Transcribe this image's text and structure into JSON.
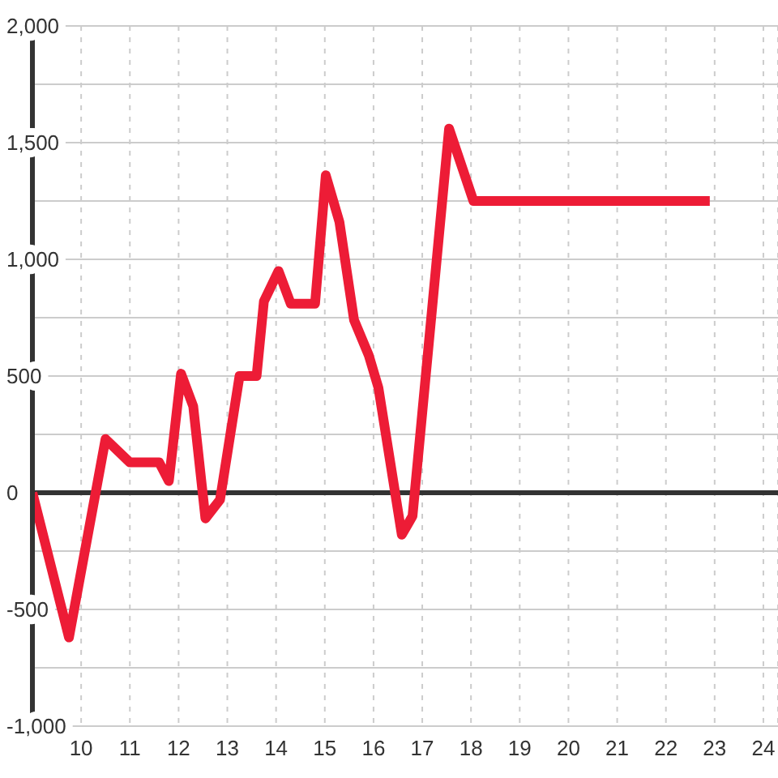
{
  "chart_data": {
    "type": "line",
    "x": [
      9,
      9.75,
      10.5,
      11,
      11.6,
      11.8,
      12.05,
      12.3,
      12.55,
      12.85,
      13.25,
      13.6,
      13.75,
      14.05,
      14.3,
      14.8,
      15.02,
      15.3,
      15.6,
      15.9,
      16.1,
      16.58,
      16.8,
      17.55,
      18.05,
      22.9
    ],
    "values": [
      0,
      -620,
      230,
      130,
      130,
      50,
      510,
      370,
      -110,
      -30,
      500,
      500,
      820,
      950,
      810,
      810,
      1360,
      1160,
      740,
      590,
      450,
      -180,
      -100,
      1560,
      1250,
      1250
    ],
    "color": "#ed1c36",
    "line_style": "solid",
    "xlim": [
      9,
      24.3
    ],
    "xticks": [
      10,
      11,
      12,
      13,
      14,
      15,
      16,
      17,
      18,
      19,
      20,
      21,
      22,
      23,
      24
    ],
    "ylim": [
      -1000,
      2000
    ],
    "yticks": [
      {
        "value": -1000,
        "label": "-1,000"
      },
      {
        "value": -750,
        "label": null
      },
      -500,
      {
        "value": -250,
        "label": null
      },
      0,
      {
        "value": 250,
        "label": null
      },
      500,
      {
        "value": 750,
        "label": null
      },
      {
        "value": 1000,
        "label": "1,000"
      },
      {
        "value": 1250,
        "label": null
      },
      {
        "value": 1500,
        "label": "1,500"
      },
      {
        "value": 1750,
        "label": null
      },
      {
        "value": 2000,
        "label": "2,000"
      }
    ],
    "grid": true,
    "ref_lines": [
      {
        "axis": "y",
        "value": 0,
        "color": "#333333"
      }
    ]
  }
}
